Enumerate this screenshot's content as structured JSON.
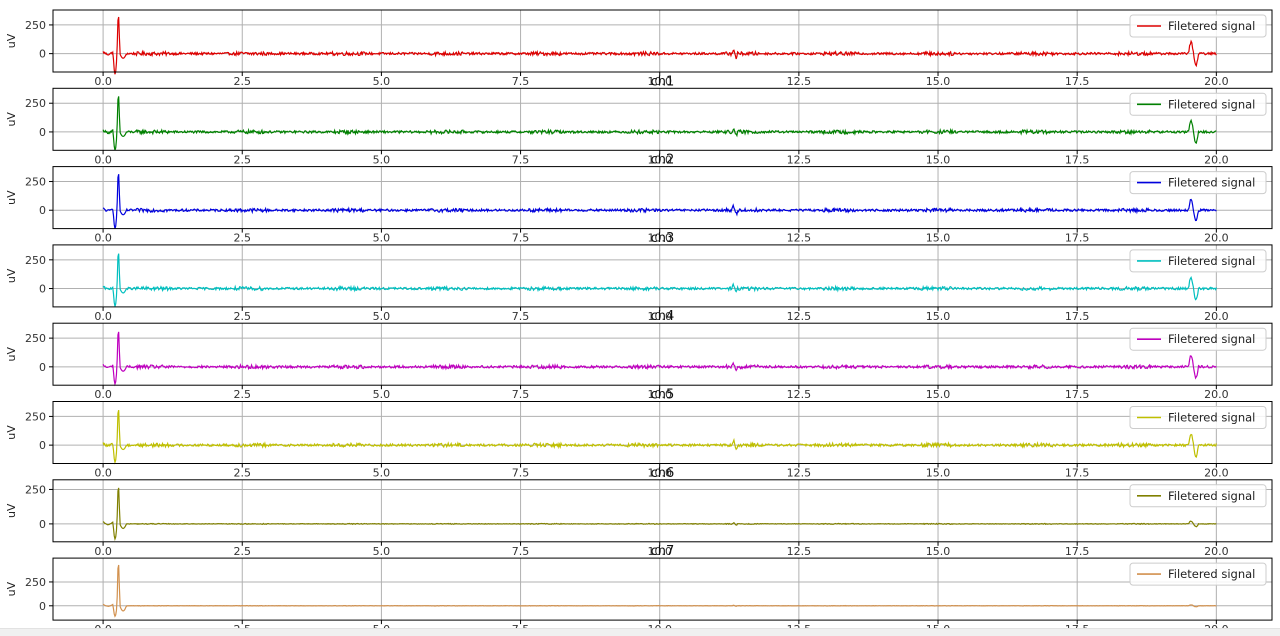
{
  "figure": {
    "x_ticks": [
      0.0,
      2.5,
      5.0,
      7.5,
      10.0,
      12.5,
      15.0,
      17.5,
      20.0
    ],
    "xlim": [
      -0.9,
      21.0
    ]
  },
  "chart_data": [
    {
      "type": "line",
      "title": "",
      "ylabel": "uV",
      "ylim": [
        -160,
        380
      ],
      "yticks": [
        0,
        250
      ],
      "color": "#dd0000",
      "legend_position": "top-right",
      "series": [
        {
          "name": "Filetered signal",
          "spike_peak": 335,
          "spike_trough": -180,
          "noise": 10,
          "late_event": 100
        }
      ]
    },
    {
      "type": "line",
      "title": "ch1",
      "ylabel": "uV",
      "ylim": [
        -160,
        380
      ],
      "yticks": [
        0,
        250
      ],
      "color": "#008000",
      "legend_position": "top-right",
      "series": [
        {
          "name": "Filetered signal",
          "spike_peak": 325,
          "spike_trough": -160,
          "noise": 10,
          "late_event": 95
        }
      ]
    },
    {
      "type": "line",
      "title": "ch2",
      "ylabel": "uV",
      "ylim": [
        -160,
        380
      ],
      "yticks": [
        0,
        250
      ],
      "color": "#0000dd",
      "legend_position": "top-right",
      "series": [
        {
          "name": "Filetered signal",
          "spike_peak": 330,
          "spike_trough": -160,
          "noise": 10,
          "late_event": 90
        }
      ]
    },
    {
      "type": "line",
      "title": "ch3",
      "ylabel": "uV",
      "ylim": [
        -160,
        380
      ],
      "yticks": [
        0,
        250
      ],
      "color": "#00bfbf",
      "legend_position": "top-right",
      "series": [
        {
          "name": "Filetered signal",
          "spike_peak": 320,
          "spike_trough": -155,
          "noise": 10,
          "late_event": 95
        }
      ]
    },
    {
      "type": "line",
      "title": "ch4",
      "ylabel": "uV",
      "ylim": [
        -160,
        380
      ],
      "yticks": [
        0,
        250
      ],
      "color": "#bf00bf",
      "legend_position": "top-right",
      "series": [
        {
          "name": "Filetered signal",
          "spike_peak": 320,
          "spike_trough": -150,
          "noise": 10,
          "late_event": 95
        }
      ]
    },
    {
      "type": "line",
      "title": "ch5",
      "ylabel": "uV",
      "ylim": [
        -160,
        380
      ],
      "yticks": [
        0,
        250
      ],
      "color": "#bfbf00",
      "legend_position": "top-right",
      "series": [
        {
          "name": "Filetered signal",
          "spike_peak": 320,
          "spike_trough": -150,
          "noise": 10,
          "late_event": 95
        }
      ]
    },
    {
      "type": "line",
      "title": "ch6",
      "ylabel": "uV",
      "ylim": [
        -130,
        320
      ],
      "yticks": [
        0,
        250
      ],
      "color": "#808000",
      "legend_position": "top-right",
      "series": [
        {
          "name": "Filetered signal",
          "spike_peak": 275,
          "spike_trough": -110,
          "noise": 2,
          "late_event": 20
        }
      ]
    },
    {
      "type": "line",
      "title": "ch7",
      "ylabel": "uV",
      "ylim": [
        -150,
        500
      ],
      "yticks": [
        0,
        250
      ],
      "color": "#d2914e",
      "legend_position": "top-right",
      "series": [
        {
          "name": "Filetered signal",
          "spike_peak": 450,
          "spike_trough": -110,
          "noise": 1.5,
          "late_event": 10
        }
      ]
    }
  ]
}
